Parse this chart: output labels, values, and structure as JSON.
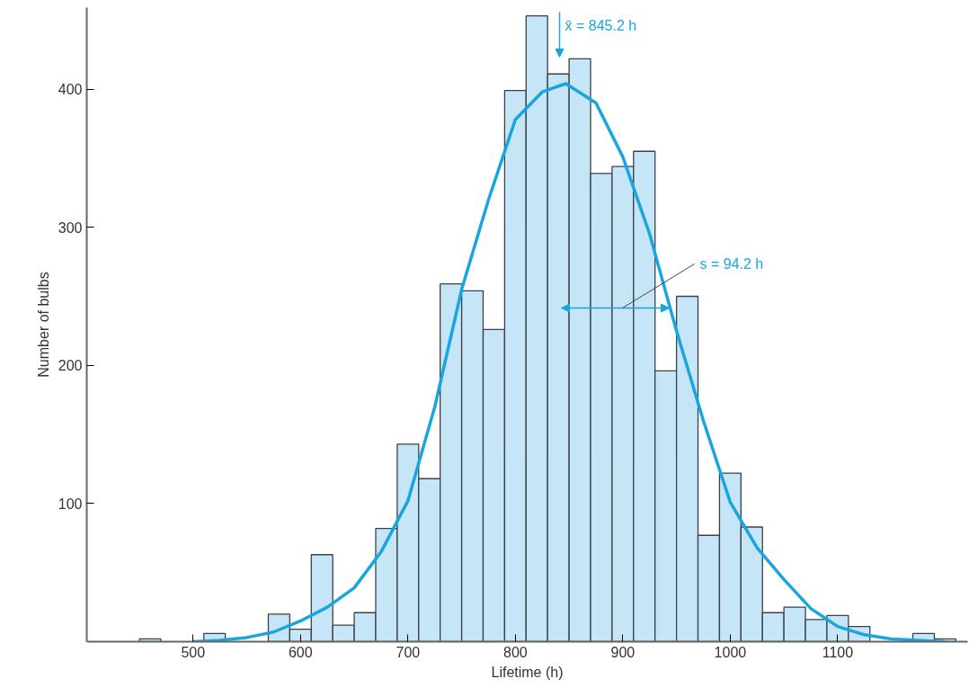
{
  "chart_data": {
    "type": "histogram",
    "xlabel": "Lifetime (h)",
    "ylabel": "Number of bulbs",
    "bins": [
      450,
      470,
      490,
      510,
      530,
      550,
      570,
      590,
      610,
      630,
      650,
      670,
      690,
      710,
      730,
      750,
      770,
      790,
      810,
      830,
      850,
      870,
      890,
      910,
      930,
      950,
      970,
      990,
      1010,
      1030,
      1050,
      1070,
      1090,
      1110,
      1130,
      1150,
      1170,
      1190,
      1210
    ],
    "series": [
      {
        "color": "#c6e5f6",
        "values": [
          2,
          0,
          0,
          6,
          0,
          0,
          20,
          9,
          63,
          12,
          21,
          82,
          143,
          118,
          259,
          254,
          226,
          399,
          453,
          411,
          422,
          339,
          344,
          355,
          196,
          250,
          77,
          122,
          83,
          21,
          25,
          16,
          19,
          11,
          0,
          0,
          6,
          2
        ]
      },
      {
        "type": "line",
        "color": "#19a6de",
        "x": [
          500,
          525,
          550,
          575,
          600,
          625,
          650,
          675,
          700,
          725,
          750,
          775,
          800,
          825,
          847,
          875,
          900,
          925,
          950,
          975,
          1000,
          1025,
          1050,
          1075,
          1100,
          1125,
          1150,
          1175,
          1200
        ],
        "values": [
          0,
          1,
          3,
          7,
          15,
          25,
          39,
          65,
          102,
          170,
          255,
          320,
          378,
          398,
          404,
          390,
          351,
          295,
          225,
          160,
          101,
          68,
          45,
          24,
          11,
          5,
          2,
          1,
          0
        ]
      }
    ],
    "xlim": [
      401,
      1221
    ],
    "ylim": [
      0,
      459
    ],
    "xticks": [
      500,
      600,
      700,
      800,
      900,
      1000,
      1100
    ],
    "yticks": [
      100,
      200,
      300,
      400
    ],
    "grid": false,
    "line_style": "solid",
    "marker": "none",
    "annotations": [
      "x̄ = 845.2 h",
      "s = 94.2 h"
    ]
  }
}
